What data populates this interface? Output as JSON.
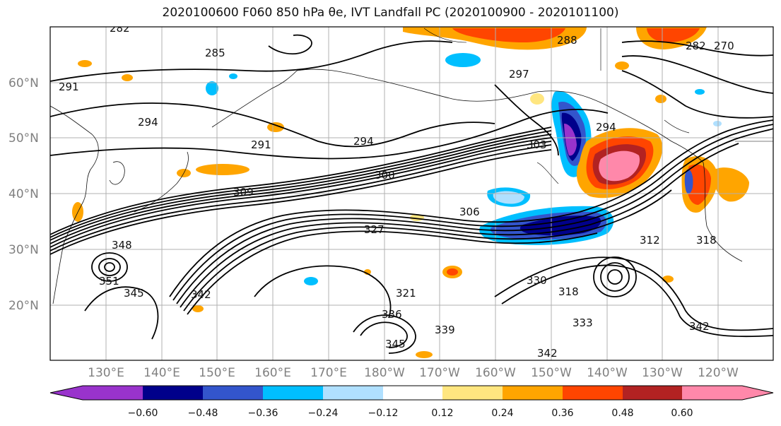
{
  "title": "2020100600 F060 850 hPa θe, IVT Landfall PC (2020100900 - 2020101100)",
  "map": {
    "lat_ticks": [
      "60°N",
      "50°N",
      "40°N",
      "30°N",
      "20°N"
    ],
    "lon_ticks": [
      "130°E",
      "140°E",
      "150°E",
      "160°E",
      "170°E",
      "180°W",
      "170°W",
      "160°W",
      "150°W",
      "140°W",
      "130°W",
      "120°W"
    ],
    "contour_labels": [
      "282",
      "285",
      "288",
      "291",
      "291",
      "294",
      "294",
      "294",
      "297",
      "300",
      "303",
      "306",
      "309",
      "312",
      "318",
      "318",
      "321",
      "327",
      "330",
      "333",
      "336",
      "339",
      "342",
      "342",
      "345",
      "345",
      "348",
      "351",
      "342",
      "270",
      "282"
    ]
  },
  "colorbar": {
    "ticks": [
      "−0.60",
      "−0.48",
      "−0.36",
      "−0.24",
      "−0.12",
      "0.12",
      "0.24",
      "0.36",
      "0.48",
      "0.60"
    ],
    "colors": [
      "#9933cc",
      "#00008b",
      "#3355cc",
      "#00bfff",
      "#b0e0ff",
      "#ffffff",
      "#ffe680",
      "#ffa500",
      "#ff4500",
      "#b22222",
      "#ff88aa",
      "#ff88aa"
    ]
  }
}
